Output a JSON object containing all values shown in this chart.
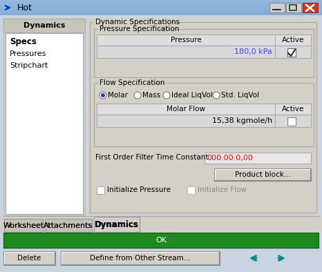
{
  "title": "Hot",
  "tab_active": "Dynamics",
  "tabs": [
    "Worksheet",
    "Attachments",
    "Dynamics"
  ],
  "left_panel_title": "Dynamics",
  "left_panel_items": [
    "Specs",
    "Pressures",
    "Stripchart"
  ],
  "section1_title": "Dynamic Specifications",
  "section2_title": "Pressure Specification",
  "pressure_value": "180,0 kPa",
  "pressure_color": "#4444FF",
  "section3_title": "Flow Specification",
  "radio_options": [
    "Molar",
    "Mass",
    "Ideal LiqVol",
    "Std. LiqVol"
  ],
  "flow_value": "15,38 kgmole/h",
  "filter_label": "First Order Filter Time Constant",
  "filter_value": "000:00:0,00",
  "filter_color": "#FF0000",
  "btn_product": "Product block...",
  "chk1_label": "Initialize Pressure",
  "chk2_label": "Initialize Flow",
  "ok_label": "OK",
  "ok_bg": "#1E8A1E",
  "btn_delete": "Delete",
  "btn_define": "Define from Other Stream...",
  "arrow_color": "#008888",
  "titlebar_top": "#9BBCE0",
  "titlebar_bottom": "#5B8CC0",
  "window_bg": "#C8D8E8",
  "panel_bg": "#D4D0C8",
  "left_bg": "#FFFFFF",
  "groupbox_bg": "#D4D0C8",
  "table_header_bg": "#E0E0E0",
  "table_row_bg": "#D8D8D8",
  "input_bg": "#E8E8E8"
}
